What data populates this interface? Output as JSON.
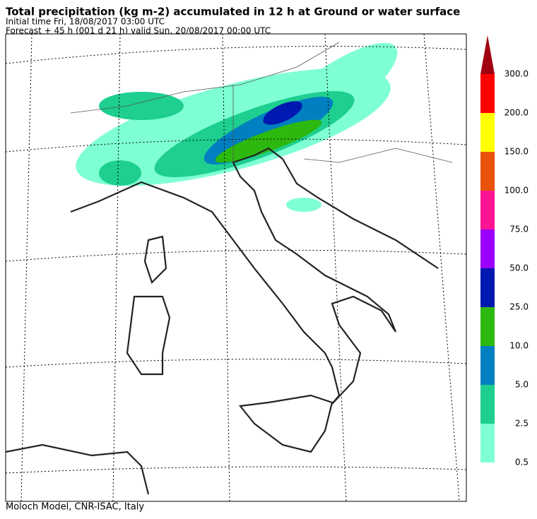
{
  "header": {
    "title": "Total precipitation (kg m-2) accumulated in  12 h at Ground or water surface",
    "line1": "Initial time  Fri, 18/08/2017  03:00 UTC",
    "line2": "Forecast  +  45 h  (001 d 21 h)  valid Sun, 20/08/2017 00:00 UTC"
  },
  "legend": {
    "labels": [
      "0.5",
      "2.5",
      "5.0",
      "10.0",
      "25.0",
      "50.0",
      "75.0",
      "100.0",
      "150.0",
      "200.0",
      "300.0"
    ],
    "colors": [
      "#7fffd4",
      "#1ecf8f",
      "#0080c0",
      "#2db80f",
      "#0019b0",
      "#9b00ff",
      "#ff1493",
      "#e8520a",
      "#ffff00",
      "#ff0000"
    ],
    "arrow_color": "#a00010"
  },
  "footer": "Moloch Model, CNR-ISAC, Italy"
}
